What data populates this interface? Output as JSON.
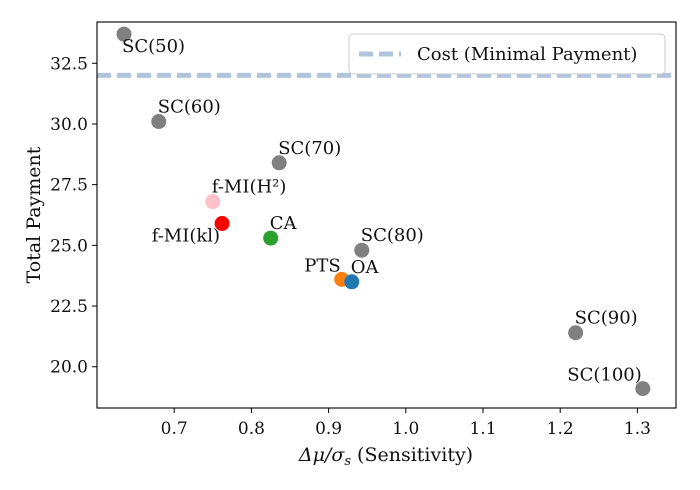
{
  "chart_data": {
    "type": "scatter",
    "title": "",
    "xlabel": "Δμ/σ_s (Sensitivity)",
    "xlabel_main": "Δμ/σ",
    "xlabel_sub": "s",
    "xlabel_rest": " (Sensitivity)",
    "ylabel": "Total Payment",
    "xlim": [
      0.6,
      1.35
    ],
    "ylim": [
      18.3,
      34.2
    ],
    "xticks": [
      0.7,
      0.8,
      0.9,
      1.0,
      1.1,
      1.2,
      1.3
    ],
    "xtick_labels": [
      "0.7",
      "0.8",
      "0.9",
      "1.0",
      "1.1",
      "1.2",
      "1.3"
    ],
    "yticks": [
      20.0,
      22.5,
      25.0,
      27.5,
      30.0,
      32.5
    ],
    "ytick_labels": [
      "20.0",
      "22.5",
      "25.0",
      "27.5",
      "30.0",
      "32.5"
    ],
    "grid": false,
    "legend_position": "top-right",
    "legend_entry": "Cost (Minimal Payment)",
    "reference_line": {
      "y": 32.0,
      "color": "#b0c4de",
      "label": "Cost (Minimal Payment)"
    },
    "points": [
      {
        "label": "SC(50)",
        "x": 0.635,
        "y": 33.7,
        "color": "#808080",
        "anchor": "below-right"
      },
      {
        "label": "SC(60)",
        "x": 0.68,
        "y": 30.1,
        "color": "#808080",
        "anchor": "above-right"
      },
      {
        "label": "SC(70)",
        "x": 0.836,
        "y": 28.4,
        "color": "#808080",
        "anchor": "above-right"
      },
      {
        "label": "f-MI(H²)",
        "x": 0.75,
        "y": 26.8,
        "color": "#ffc0cb",
        "anchor": "above-right"
      },
      {
        "label": "f-MI(kl)",
        "x": 0.762,
        "y": 25.9,
        "color": "#ff0000",
        "anchor": "below-left"
      },
      {
        "label": "CA",
        "x": 0.825,
        "y": 25.3,
        "color": "#2ca02c",
        "anchor": "above-right"
      },
      {
        "label": "SC(80)",
        "x": 0.943,
        "y": 24.8,
        "color": "#808080",
        "anchor": "above-right"
      },
      {
        "label": "PTS",
        "x": 0.917,
        "y": 23.6,
        "color": "#ff7f0e",
        "anchor": "above-left"
      },
      {
        "label": "OA",
        "x": 0.93,
        "y": 23.5,
        "color": "#1f77b4",
        "anchor": "above-right"
      },
      {
        "label": "SC(90)",
        "x": 1.22,
        "y": 21.4,
        "color": "#808080",
        "anchor": "above-right"
      },
      {
        "label": "SC(100)",
        "x": 1.307,
        "y": 19.1,
        "color": "#808080",
        "anchor": "above-left"
      }
    ]
  }
}
